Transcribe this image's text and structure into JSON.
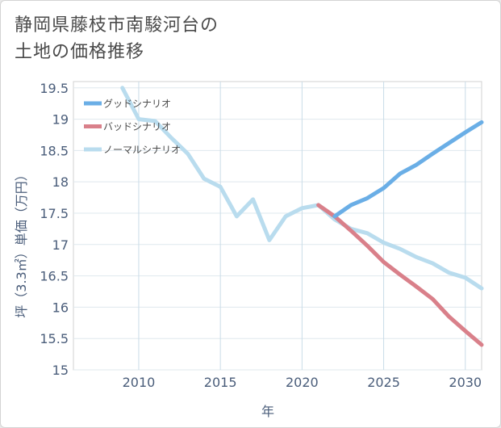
{
  "title_line1": "静岡県藤枝市南駿河台の",
  "title_line2": "土地の価格推移",
  "chart_data": {
    "type": "line",
    "title": "静岡県藤枝市南駿河台の土地の価格推移",
    "xlabel": "年",
    "ylabel": "坪（3.3㎡）単価（万円）",
    "xlim": [
      2006,
      2031
    ],
    "ylim": [
      15,
      19.6
    ],
    "xticks": [
      2010,
      2015,
      2020,
      2025,
      2030
    ],
    "yticks": [
      15,
      15.5,
      16,
      16.5,
      17,
      17.5,
      18,
      18.5,
      19,
      19.5
    ],
    "grid": true,
    "legend_position": "top-left",
    "series": [
      {
        "name": "グッドシナリオ",
        "color": "#6aaee6",
        "x": [
          2022,
          2023,
          2024,
          2025,
          2026,
          2027,
          2028,
          2029,
          2030,
          2031
        ],
        "y": [
          17.45,
          17.63,
          17.74,
          17.9,
          18.13,
          18.27,
          18.45,
          18.62,
          18.79,
          18.95
        ]
      },
      {
        "name": "バッドシナリオ",
        "color": "#d9808a",
        "x": [
          2021,
          2022,
          2023,
          2024,
          2025,
          2026,
          2027,
          2028,
          2029,
          2030,
          2031
        ],
        "y": [
          17.63,
          17.45,
          17.22,
          16.98,
          16.72,
          16.52,
          16.33,
          16.13,
          15.85,
          15.62,
          15.4
        ]
      },
      {
        "name": "ノーマルシナリオ",
        "color": "#b9dcee",
        "x": [
          2009,
          2010,
          2011,
          2012,
          2013,
          2014,
          2015,
          2016,
          2017,
          2018,
          2019,
          2020,
          2021,
          2022,
          2023,
          2024,
          2025,
          2026,
          2027,
          2028,
          2029,
          2030,
          2031
        ],
        "y": [
          19.5,
          19.0,
          18.97,
          18.7,
          18.45,
          18.05,
          17.92,
          17.45,
          17.72,
          17.07,
          17.45,
          17.58,
          17.63,
          17.4,
          17.25,
          17.18,
          17.03,
          16.93,
          16.8,
          16.7,
          16.55,
          16.47,
          16.3
        ]
      }
    ]
  }
}
